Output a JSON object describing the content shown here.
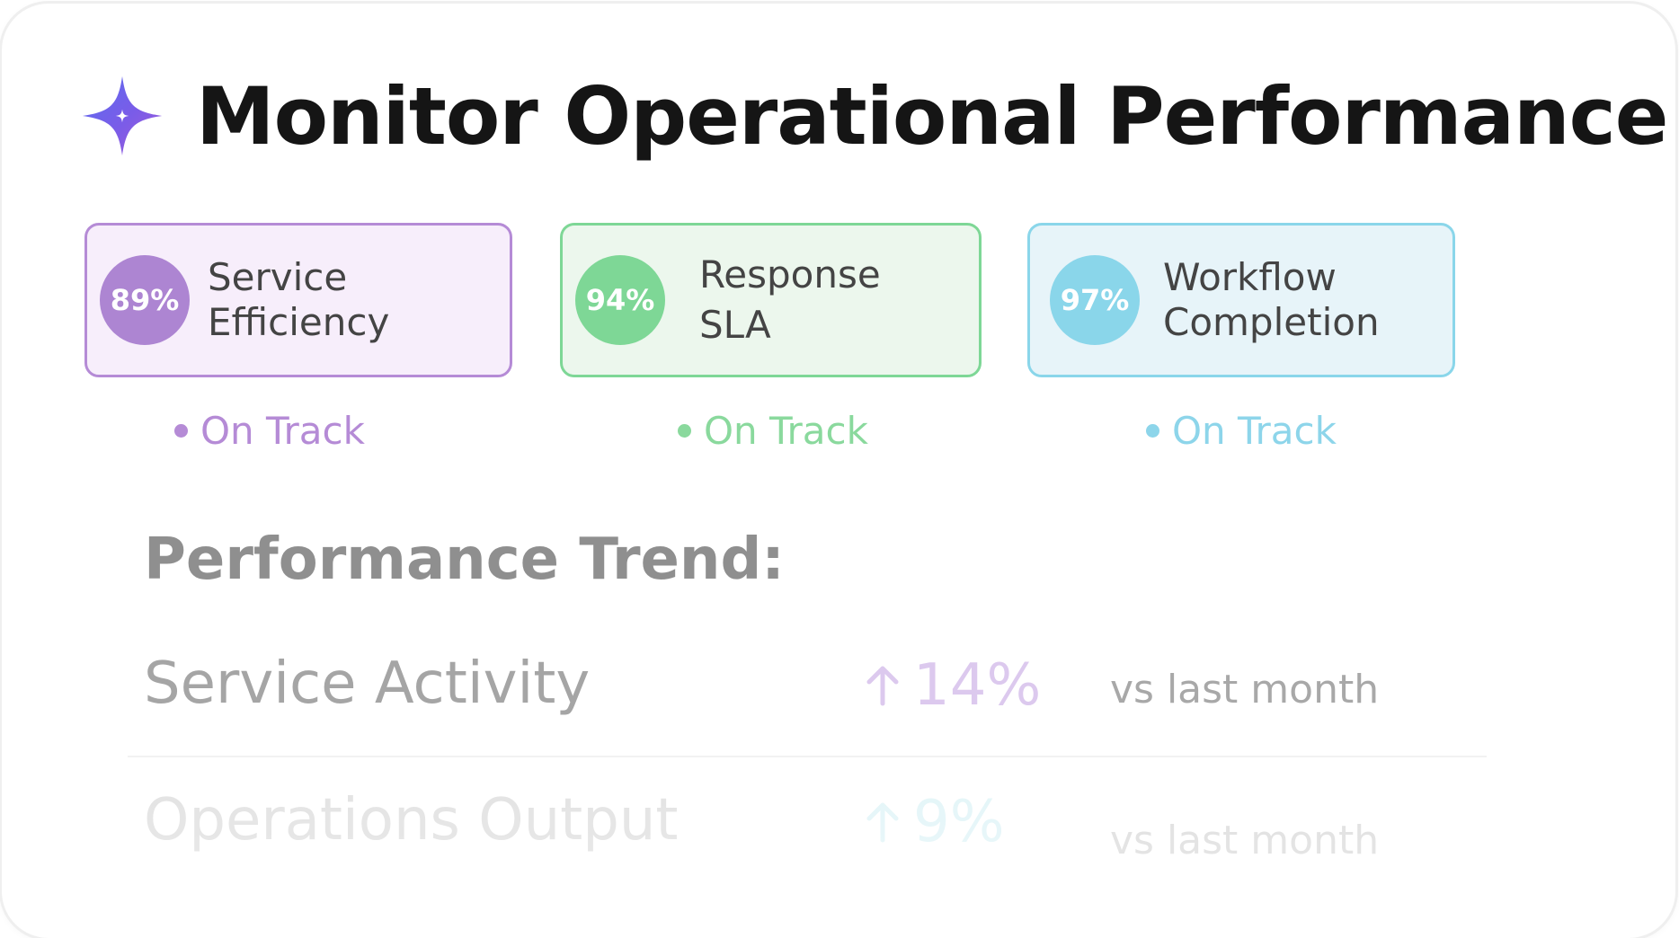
{
  "header": {
    "logo_icon": "sparkle-star-icon",
    "title": "Monitor Operational Performance"
  },
  "kpis": [
    {
      "value": "89%",
      "label_line1": "Service",
      "label_line2": "Efficiency",
      "status": "On Track",
      "color": "#b58bd6"
    },
    {
      "value": "94%",
      "label_line1": "Response",
      "label_line2": "SLA",
      "status": "On Track",
      "color": "#7ed796"
    },
    {
      "value": "97%",
      "label_line1": "Workflow",
      "label_line2": "Completion",
      "status": "On Track",
      "color": "#8ad6ea"
    }
  ],
  "trend": {
    "title": "Performance Trend:",
    "rows": [
      {
        "name": "Service Activity",
        "change": "14%",
        "direction_icon": "arrow-up-icon",
        "compare": "vs last month"
      },
      {
        "name": "Operations Output",
        "change": "9%",
        "direction_icon": "arrow-up-icon",
        "compare": "vs last month"
      }
    ]
  }
}
